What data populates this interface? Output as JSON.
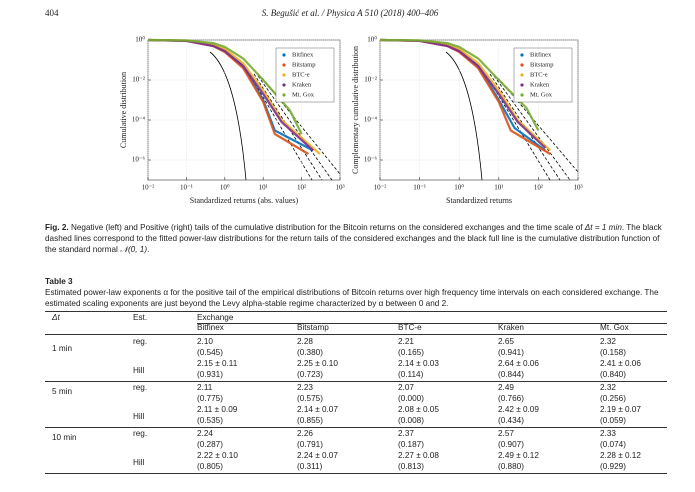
{
  "header": {
    "page": "404",
    "journal": "S. Begušić et al. / Physica A 510 (2018) 400–406"
  },
  "chart_data": [
    {
      "type": "line",
      "ylabel": "Cumulative distribution",
      "xlabel": "Standardized returns (abs. values)",
      "xlog": true,
      "ylog": true,
      "grid": true,
      "legend": "upper right",
      "xlim": [
        0.01,
        1000
      ],
      "ylim": [
        1e-07,
        1
      ],
      "xticks": [
        {
          "value": 0.01,
          "label": "10⁻²"
        },
        {
          "value": 0.1,
          "label": "10⁻¹"
        },
        {
          "value": 1,
          "label": "10⁰"
        },
        {
          "value": 10,
          "label": "10¹"
        },
        {
          "value": 100,
          "label": "10²"
        },
        {
          "value": 1000,
          "label": "10³"
        }
      ],
      "yticks": [
        {
          "value": 1,
          "label": "10⁰"
        },
        {
          "value": 0.01,
          "label": "10⁻²"
        },
        {
          "value": 0.0001,
          "label": "10⁻⁴"
        },
        {
          "value": 1e-06,
          "label": "10⁻⁶"
        }
      ],
      "series": [
        {
          "name": "Bitfinex",
          "color": "#0072bd",
          "x": [
            0.01,
            0.1,
            0.5,
            1,
            3,
            10,
            20,
            200
          ],
          "values": [
            1,
            0.92,
            0.55,
            0.3,
            0.05,
            0.001,
            3e-05,
            3e-06
          ]
        },
        {
          "name": "Bitstamp",
          "color": "#d95319",
          "x": [
            0.01,
            0.1,
            0.5,
            1,
            3,
            10,
            20,
            150
          ],
          "values": [
            1,
            0.9,
            0.5,
            0.25,
            0.04,
            0.0008,
            2e-05,
            2e-06
          ]
        },
        {
          "name": "BTC-e",
          "color": "#edb120",
          "x": [
            0.01,
            0.1,
            0.5,
            1,
            3,
            10,
            30,
            300
          ],
          "values": [
            1,
            0.93,
            0.6,
            0.35,
            0.07,
            0.003,
            0.0001,
            2e-06
          ]
        },
        {
          "name": "Kraken",
          "color": "#7e2f8e",
          "x": [
            0.01,
            0.1,
            0.5,
            1,
            3,
            10,
            30,
            200
          ],
          "values": [
            1,
            0.9,
            0.5,
            0.28,
            0.05,
            0.002,
            8e-05,
            3e-06
          ]
        },
        {
          "name": "Mt. Gox",
          "color": "#77ac30",
          "x": [
            0.01,
            0.1,
            0.5,
            1,
            3,
            10,
            50,
            100
          ],
          "values": [
            1,
            0.95,
            0.7,
            0.45,
            0.12,
            0.01,
            0.0003,
            2e-05
          ]
        }
      ]
    },
    {
      "type": "line",
      "ylabel": "Complementary cumulative distribution",
      "xlabel": "Standardized returns",
      "xlog": true,
      "ylog": true,
      "grid": true,
      "legend": "upper right",
      "xlim": [
        0.01,
        1000
      ],
      "ylim": [
        1e-07,
        1
      ],
      "xticks": [
        {
          "value": 0.01,
          "label": "10⁻²"
        },
        {
          "value": 0.1,
          "label": "10⁻¹"
        },
        {
          "value": 1,
          "label": "10⁰"
        },
        {
          "value": 10,
          "label": "10¹"
        },
        {
          "value": 100,
          "label": "10²"
        },
        {
          "value": 1000,
          "label": "10³"
        }
      ],
      "yticks": [
        {
          "value": 1,
          "label": "10⁰"
        },
        {
          "value": 0.01,
          "label": "10⁻²"
        },
        {
          "value": 0.0001,
          "label": "10⁻⁴"
        },
        {
          "value": 1e-06,
          "label": "10⁻⁶"
        }
      ],
      "series": [
        {
          "name": "Bitfinex",
          "color": "#0072bd",
          "x": [
            0.01,
            0.1,
            0.5,
            1,
            3,
            10,
            25,
            150
          ],
          "values": [
            1,
            0.92,
            0.55,
            0.3,
            0.05,
            0.001,
            4e-05,
            3e-06
          ]
        },
        {
          "name": "Bitstamp",
          "color": "#d95319",
          "x": [
            0.01,
            0.1,
            0.5,
            1,
            3,
            10,
            20,
            200
          ],
          "values": [
            1,
            0.9,
            0.5,
            0.25,
            0.04,
            0.0008,
            3e-05,
            2e-06
          ]
        },
        {
          "name": "BTC-e",
          "color": "#edb120",
          "x": [
            0.01,
            0.1,
            0.5,
            1,
            3,
            10,
            30,
            200
          ],
          "values": [
            1,
            0.93,
            0.6,
            0.35,
            0.07,
            0.003,
            0.0001,
            3e-06
          ]
        },
        {
          "name": "Kraken",
          "color": "#7e2f8e",
          "x": [
            0.01,
            0.1,
            0.5,
            1,
            3,
            10,
            30,
            150
          ],
          "values": [
            1,
            0.9,
            0.5,
            0.28,
            0.05,
            0.002,
            8e-05,
            4e-06
          ]
        },
        {
          "name": "Mt. Gox",
          "color": "#77ac30",
          "x": [
            0.01,
            0.1,
            0.5,
            1,
            3,
            10,
            50,
            100
          ],
          "values": [
            1,
            0.95,
            0.7,
            0.45,
            0.12,
            0.01,
            0.0004,
            3e-05
          ]
        }
      ]
    }
  ],
  "caption": {
    "label": "Fig. 2.",
    "parts": [
      "Negative (left) and Positive (right) tails of the cumulative distribution for the Bitcoin returns on the considered exchanges and the time scale of ",
      "Δt = 1 min",
      ". The black dashed lines correspond to the fitted power-law distributions for the return tails of the considered exchanges and the black full line is the cumulative distribution function of the standard normal ",
      "𝒩(0, 1)",
      "."
    ]
  },
  "table": {
    "title": "Table 3",
    "caption": "Estimated power-law exponents α for the positive tail of the empirical distributions of Bitcoin returns over high frequency time intervals on each considered exchange. The estimated scaling exponents are just beyond the Levy alpha-stable regime characterized by α between 0 and 2.",
    "header": {
      "dt": "Δt",
      "est": "Est.",
      "group": "Exchange",
      "exchanges": [
        "Bitfinex",
        "Bitstamp",
        "BTC-e",
        "Kraken",
        "Mt. Gox"
      ]
    },
    "groups": [
      {
        "dt": "1 min",
        "rows": [
          {
            "est": "reg.",
            "cells": [
              {
                "value": "2.10",
                "se": "(0.545)"
              },
              {
                "value": "2.28",
                "se": "(0.380)"
              },
              {
                "value": "2.21",
                "se": "(0.165)"
              },
              {
                "value": "2.65",
                "se": "(0.941)"
              },
              {
                "value": "2.32",
                "se": "(0.158)"
              }
            ]
          },
          {
            "est": "Hill",
            "cells": [
              {
                "value": "2.15 ± 0.11",
                "se": "(0.931)"
              },
              {
                "value": "2.25 ± 0.10",
                "se": "(0.723)"
              },
              {
                "value": "2.14 ± 0.03",
                "se": "(0.114)"
              },
              {
                "value": "2.64 ± 0.06",
                "se": "(0.844)"
              },
              {
                "value": "2.41 ± 0.06",
                "se": "(0.840)"
              }
            ]
          }
        ]
      },
      {
        "dt": "5 min",
        "rows": [
          {
            "est": "reg.",
            "cells": [
              {
                "value": "2.11",
                "se": "(0.775)"
              },
              {
                "value": "2.23",
                "se": "(0.575)"
              },
              {
                "value": "2.07",
                "se": "(0.000)"
              },
              {
                "value": "2.49",
                "se": "(0.766)"
              },
              {
                "value": "2.32",
                "se": "(0.256)"
              }
            ]
          },
          {
            "est": "Hill",
            "cells": [
              {
                "value": "2.11 ± 0.09",
                "se": "(0.535)"
              },
              {
                "value": "2.14 ± 0.07",
                "se": "(0.855)"
              },
              {
                "value": "2.08 ± 0.05",
                "se": "(0.008)"
              },
              {
                "value": "2.42 ± 0.09",
                "se": "(0.434)"
              },
              {
                "value": "2.19 ± 0.07",
                "se": "(0.059)"
              }
            ]
          }
        ]
      },
      {
        "dt": "10 min",
        "rows": [
          {
            "est": "reg.",
            "cells": [
              {
                "value": "2.24",
                "se": "(0.287)"
              },
              {
                "value": "2.26",
                "se": "(0.791)"
              },
              {
                "value": "2.37",
                "se": "(0.187)"
              },
              {
                "value": "2.57",
                "se": "(0.907)"
              },
              {
                "value": "2.33",
                "se": "(0.074)"
              }
            ]
          },
          {
            "est": "Hill",
            "cells": [
              {
                "value": "2.22 ± 0.10",
                "se": "(0.805)"
              },
              {
                "value": "2.24 ± 0.07",
                "se": "(0.311)"
              },
              {
                "value": "2.27 ± 0.08",
                "se": "(0.813)"
              },
              {
                "value": "2.49 ± 0.12",
                "se": "(0.880)"
              },
              {
                "value": "2.28 ± 0.12",
                "se": "(0.929)"
              }
            ]
          }
        ]
      }
    ]
  }
}
